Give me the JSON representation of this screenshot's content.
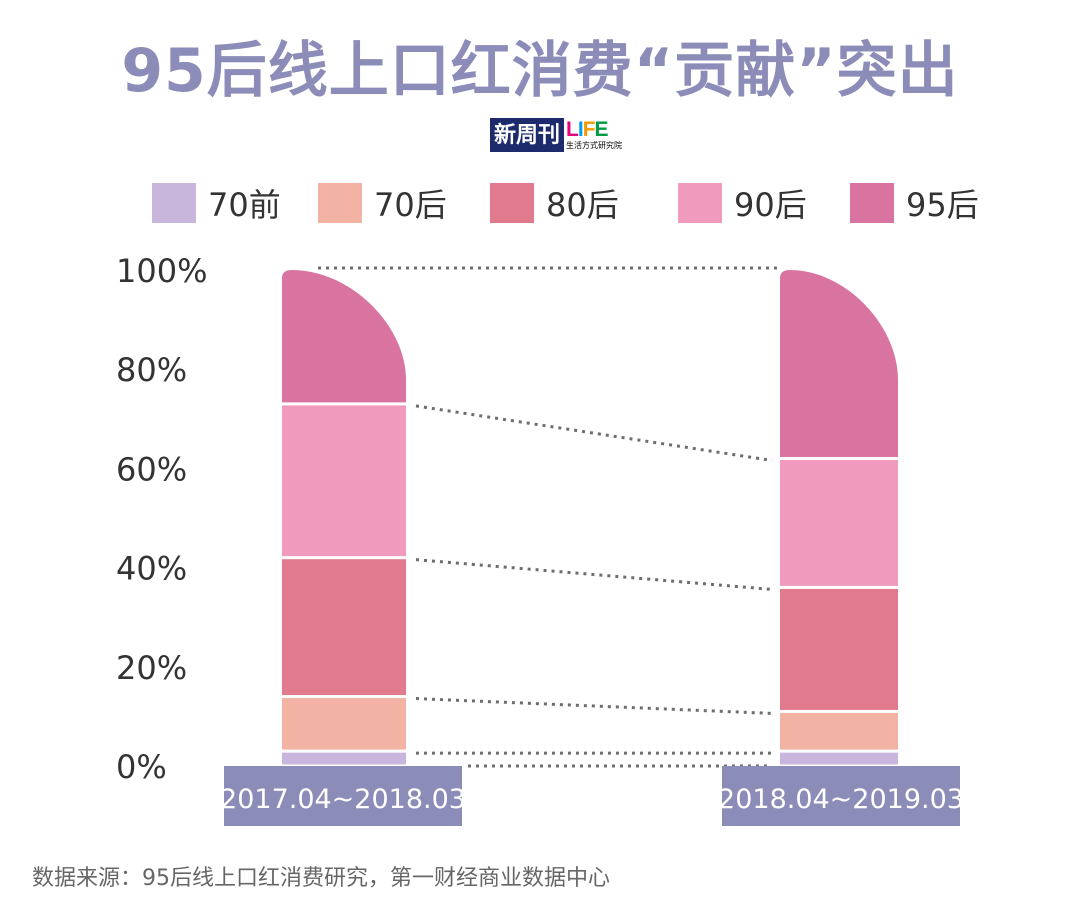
{
  "title": "95后线上口红消费“贡献”突出",
  "brand": {
    "left": "新周刊",
    "life": [
      "L",
      "I",
      "F",
      "E"
    ],
    "sub": "生活方式研究院"
  },
  "legend": [
    {
      "label": "70前",
      "color": "#c8b6dc"
    },
    {
      "label": "70后",
      "color": "#f2b2a4"
    },
    {
      "label": "80后",
      "color": "#e07a8c"
    },
    {
      "label": "90后",
      "color": "#f09abd"
    },
    {
      "label": "95后",
      "color": "#d9739f"
    }
  ],
  "source": "数据来源：95后线上口红消费研究，第一财经商业数据中心",
  "chart_data": {
    "type": "bar",
    "stacked": true,
    "categories": [
      "2017.04~2018.03",
      "2018.04~2019.03"
    ],
    "series": [
      {
        "name": "70前",
        "values": [
          3,
          3
        ]
      },
      {
        "name": "70后",
        "values": [
          11,
          8
        ]
      },
      {
        "name": "80后",
        "values": [
          28,
          25
        ]
      },
      {
        "name": "90后",
        "values": [
          31,
          26
        ]
      },
      {
        "name": "95后",
        "values": [
          27,
          38
        ]
      }
    ],
    "yticks": [
      "0%",
      "20%",
      "40%",
      "60%",
      "80%",
      "100%"
    ],
    "ylim": [
      0,
      100
    ],
    "category_label_bg": "#8c8cb8"
  }
}
